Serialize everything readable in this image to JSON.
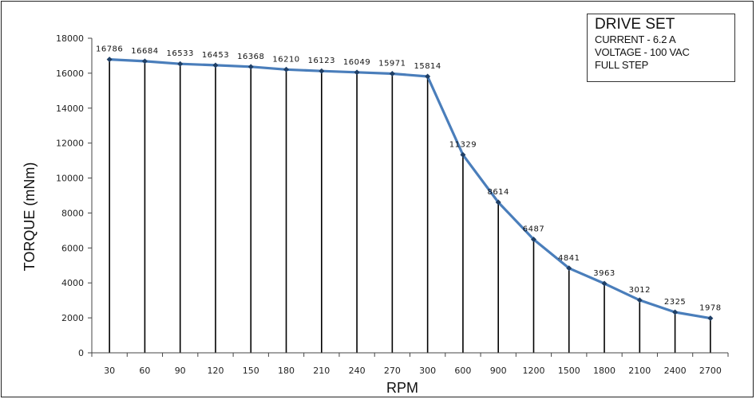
{
  "chart_data": {
    "type": "line",
    "categories": [
      "30",
      "60",
      "90",
      "120",
      "150",
      "180",
      "210",
      "240",
      "270",
      "300",
      "600",
      "900",
      "1200",
      "1500",
      "1800",
      "2100",
      "2400",
      "2700"
    ],
    "series": [
      {
        "values": [
          16786,
          16684,
          16533,
          16453,
          16368,
          16210,
          16123,
          16049,
          15971,
          15814,
          11329,
          8614,
          6487,
          4841,
          3963,
          3012,
          2325,
          1978
        ]
      }
    ],
    "data_labels": [
      "16786",
      "16684",
      "16533",
      "16453",
      "16368",
      "16210",
      "16123",
      "16049",
      "15971",
      "15814",
      "11329",
      "8614",
      "6487",
      "4841",
      "3963",
      "3012",
      "2325",
      "1978"
    ],
    "xlabel": "RPM",
    "ylabel": "TORQUE (mNm)",
    "ylim": [
      0,
      18000
    ],
    "y_ticks": [
      "0",
      "2000",
      "4000",
      "6000",
      "8000",
      "10000",
      "12000",
      "14000",
      "16000",
      "18000"
    ],
    "drop_lines": true,
    "colors": {
      "line": "#4a7ebb",
      "marker": "#1f3f66",
      "drop_line": "#000000",
      "axis": "#444444"
    }
  },
  "legend": {
    "title": "DRIVE SET",
    "lines": [
      "CURRENT - 6.2 A",
      "VOLTAGE - 100 VAC",
      "FULL STEP"
    ]
  }
}
